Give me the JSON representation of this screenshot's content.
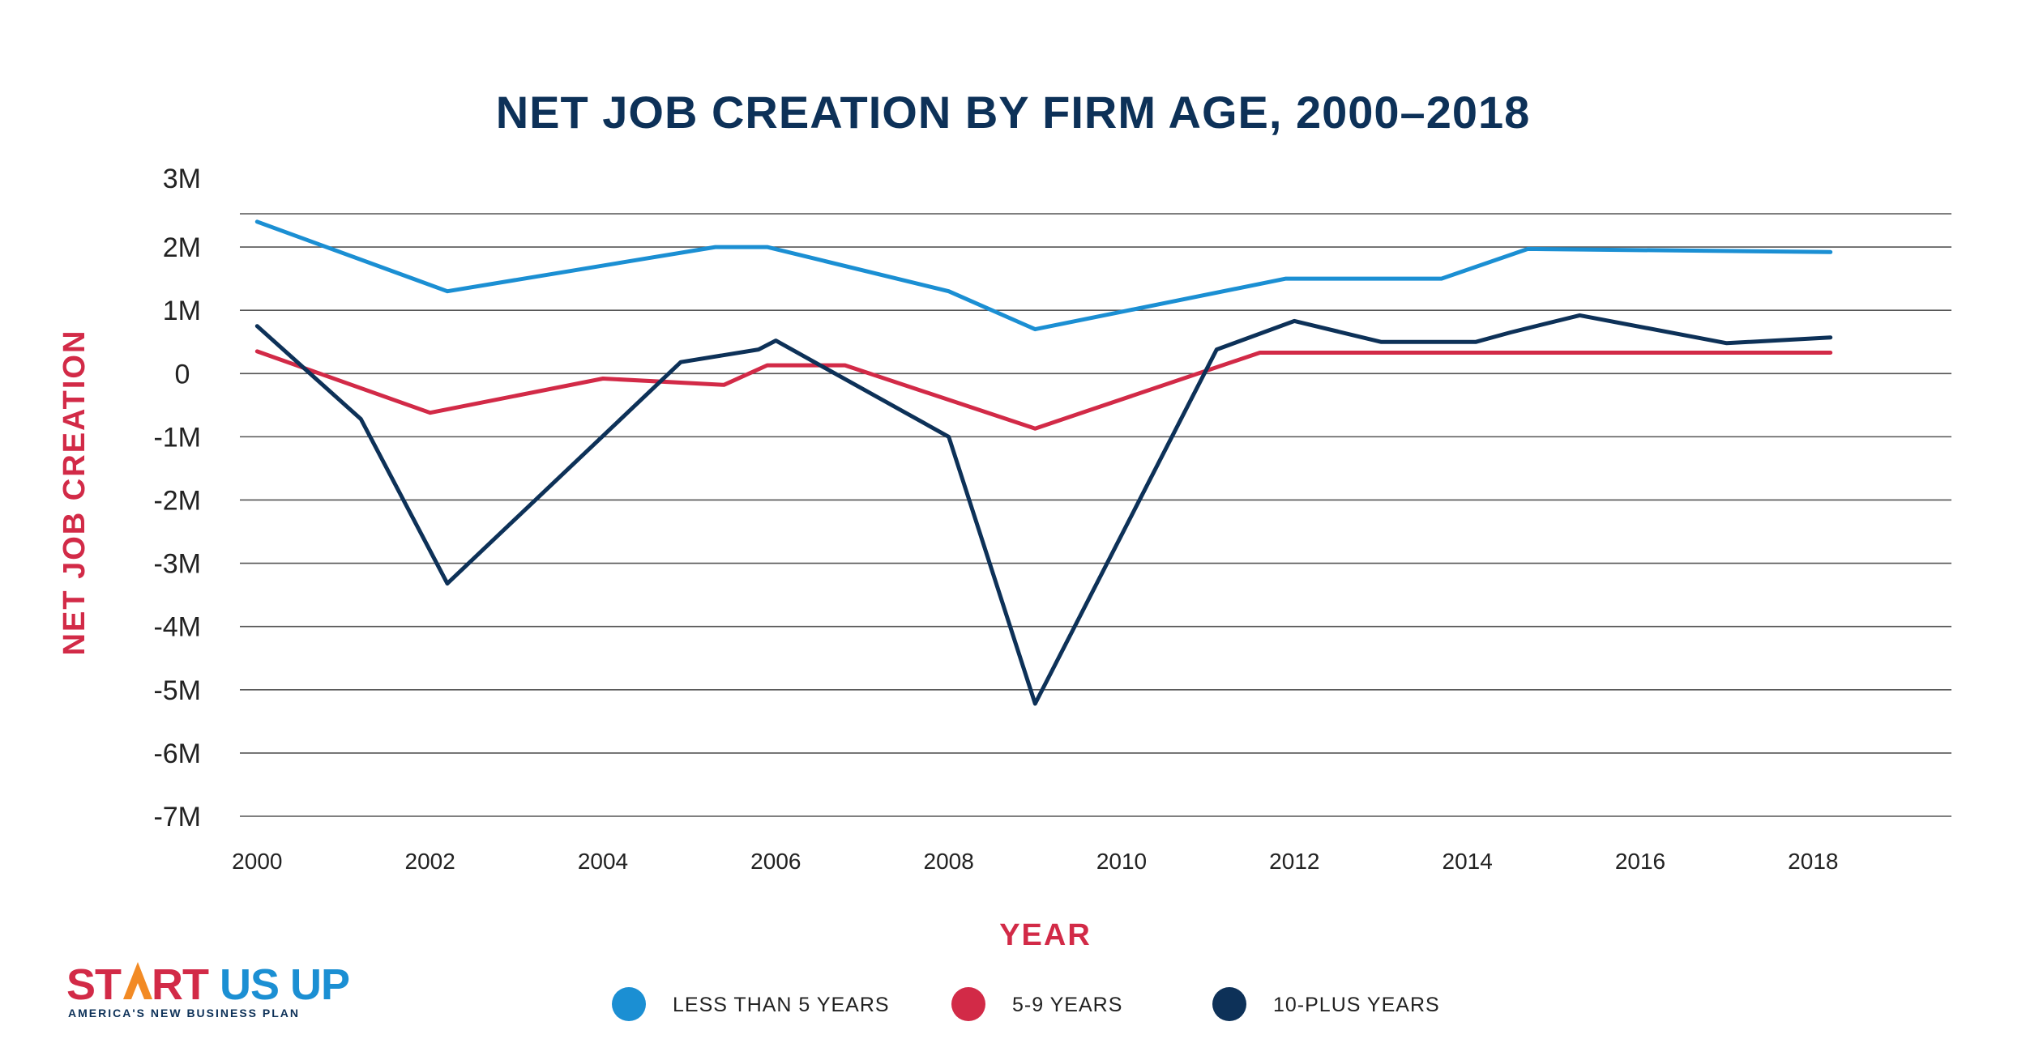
{
  "colors": {
    "title": "#0d3158",
    "axis_label": "#d22a47",
    "grid": "#555555",
    "logo_red": "#d22a47",
    "logo_blue": "#1b8fd3",
    "logo_orange": "#f28a24"
  },
  "chart_data": {
    "type": "line",
    "title": "NET JOB CREATION BY FIRM AGE, 2000–2018",
    "xlabel": "YEAR",
    "ylabel": "NET JOB CREATION",
    "xlim": [
      1999.8,
      2019.6
    ],
    "ylim": [
      -7,
      2.5
    ],
    "x_ticks": [
      2000,
      2002,
      2004,
      2006,
      2008,
      2010,
      2012,
      2014,
      2016,
      2018
    ],
    "y_ticks": [
      {
        "value": 3,
        "label": "3M"
      },
      {
        "value": 2,
        "label": "2M"
      },
      {
        "value": 1,
        "label": "1M"
      },
      {
        "value": 0,
        "label": "0"
      },
      {
        "value": -1,
        "label": "-1M"
      },
      {
        "value": -2,
        "label": "-2M"
      },
      {
        "value": -3,
        "label": "-3M"
      },
      {
        "value": -4,
        "label": "-4M"
      },
      {
        "value": -5,
        "label": "-5M"
      },
      {
        "value": -6,
        "label": "-6M"
      },
      {
        "value": -7,
        "label": "-7M"
      }
    ],
    "grid": true,
    "legend_position": "bottom",
    "series": [
      {
        "name": "LESS THAN 5 YEARS",
        "color": "#1b8fd3",
        "points": [
          [
            2000,
            2.4
          ],
          [
            2002.2,
            1.3
          ],
          [
            2005.3,
            2.0
          ],
          [
            2005.9,
            2.0
          ],
          [
            2008,
            1.3
          ],
          [
            2009.0,
            0.7
          ],
          [
            2011.9,
            1.5
          ],
          [
            2013.7,
            1.5
          ],
          [
            2014.7,
            1.97
          ],
          [
            2018.2,
            1.92
          ]
        ]
      },
      {
        "name": "5-9 YEARS",
        "color": "#d22a47",
        "points": [
          [
            2000,
            0.35
          ],
          [
            2002.0,
            -0.62
          ],
          [
            2004.0,
            -0.08
          ],
          [
            2005.4,
            -0.18
          ],
          [
            2005.9,
            0.13
          ],
          [
            2006.8,
            0.13
          ],
          [
            2009.0,
            -0.87
          ],
          [
            2011.6,
            0.33
          ],
          [
            2018.2,
            0.33
          ]
        ]
      },
      {
        "name": "10-PLUS YEARS",
        "color": "#0d3158",
        "points": [
          [
            2000,
            0.75
          ],
          [
            2001.2,
            -0.72
          ],
          [
            2002.2,
            -3.32
          ],
          [
            2004.9,
            0.18
          ],
          [
            2005.8,
            0.38
          ],
          [
            2006.0,
            0.52
          ],
          [
            2008.0,
            -1.0
          ],
          [
            2009.0,
            -5.22
          ],
          [
            2011.1,
            0.38
          ],
          [
            2012.0,
            0.83
          ],
          [
            2013.0,
            0.5
          ],
          [
            2014.1,
            0.5
          ],
          [
            2014.5,
            0.65
          ],
          [
            2015.3,
            0.92
          ],
          [
            2017.0,
            0.48
          ],
          [
            2018.2,
            0.57
          ]
        ]
      }
    ]
  },
  "logo": {
    "line1_a": "ST",
    "line1_b": "RT",
    "line1_c": " US UP",
    "line2": "AMERICA'S NEW BUSINESS PLAN"
  }
}
